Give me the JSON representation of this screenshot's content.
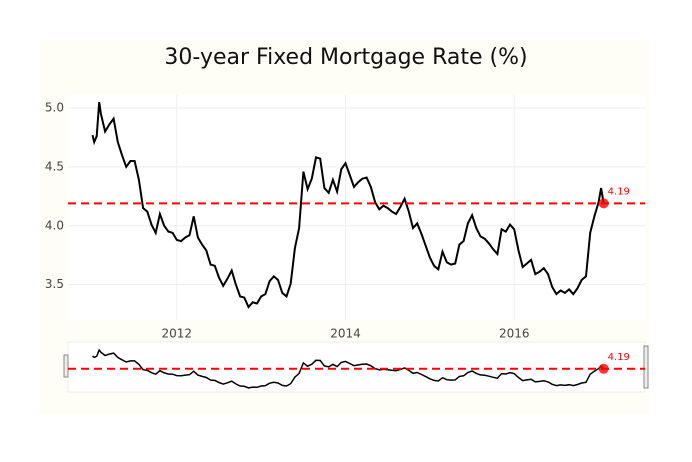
{
  "chart_data": {
    "type": "line",
    "title": "30-year Fixed Mortgage Rate (%)",
    "x": [
      2011.0,
      2011.02,
      2011.05,
      2011.08,
      2011.1,
      2011.15,
      2011.2,
      2011.25,
      2011.3,
      2011.35,
      2011.4,
      2011.45,
      2011.5,
      2011.55,
      2011.6,
      2011.65,
      2011.7,
      2011.75,
      2011.8,
      2011.85,
      2011.9,
      2011.95,
      2012.0,
      2012.05,
      2012.1,
      2012.15,
      2012.2,
      2012.25,
      2012.3,
      2012.35,
      2012.4,
      2012.45,
      2012.5,
      2012.55,
      2012.6,
      2012.65,
      2012.7,
      2012.75,
      2012.8,
      2012.85,
      2012.9,
      2012.95,
      2013.0,
      2013.05,
      2013.1,
      2013.15,
      2013.2,
      2013.25,
      2013.3,
      2013.35,
      2013.4,
      2013.45,
      2013.5,
      2013.55,
      2013.6,
      2013.65,
      2013.7,
      2013.75,
      2013.8,
      2013.85,
      2013.9,
      2013.95,
      2014.0,
      2014.05,
      2014.1,
      2014.15,
      2014.2,
      2014.25,
      2014.3,
      2014.35,
      2014.4,
      2014.45,
      2014.5,
      2014.55,
      2014.6,
      2014.65,
      2014.7,
      2014.75,
      2014.8,
      2014.85,
      2014.9,
      2014.95,
      2015.0,
      2015.05,
      2015.1,
      2015.15,
      2015.2,
      2015.25,
      2015.3,
      2015.35,
      2015.4,
      2015.45,
      2015.5,
      2015.55,
      2015.6,
      2015.65,
      2015.7,
      2015.75,
      2015.8,
      2015.85,
      2015.9,
      2015.95,
      2016.0,
      2016.05,
      2016.1,
      2016.15,
      2016.2,
      2016.25,
      2016.3,
      2016.35,
      2016.4,
      2016.45,
      2016.5,
      2016.55,
      2016.6,
      2016.65,
      2016.7,
      2016.75,
      2016.8,
      2016.85,
      2016.9,
      2016.95,
      2017.0,
      2017.03,
      2017.06
    ],
    "series": [
      {
        "color": "#000000",
        "values": [
          4.77,
          4.71,
          4.76,
          5.05,
          4.95,
          4.8,
          4.86,
          4.91,
          4.71,
          4.6,
          4.5,
          4.55,
          4.55,
          4.39,
          4.15,
          4.12,
          4.01,
          3.94,
          4.1,
          4.0,
          3.95,
          3.94,
          3.88,
          3.87,
          3.9,
          3.92,
          4.08,
          3.9,
          3.84,
          3.79,
          3.67,
          3.66,
          3.56,
          3.49,
          3.55,
          3.62,
          3.5,
          3.4,
          3.39,
          3.31,
          3.35,
          3.34,
          3.4,
          3.42,
          3.53,
          3.57,
          3.54,
          3.43,
          3.4,
          3.51,
          3.81,
          3.98,
          4.46,
          4.31,
          4.4,
          4.58,
          4.57,
          4.32,
          4.28,
          4.39,
          4.29,
          4.48,
          4.53,
          4.43,
          4.33,
          4.37,
          4.4,
          4.41,
          4.33,
          4.2,
          4.14,
          4.17,
          4.15,
          4.12,
          4.1,
          4.16,
          4.23,
          4.12,
          3.98,
          4.02,
          3.93,
          3.83,
          3.73,
          3.66,
          3.63,
          3.78,
          3.69,
          3.67,
          3.68,
          3.84,
          3.87,
          4.02,
          4.09,
          3.98,
          3.91,
          3.89,
          3.85,
          3.8,
          3.76,
          3.97,
          3.95,
          4.01,
          3.97,
          3.79,
          3.65,
          3.68,
          3.71,
          3.59,
          3.61,
          3.64,
          3.59,
          3.48,
          3.42,
          3.45,
          3.43,
          3.46,
          3.42,
          3.47,
          3.54,
          3.57,
          3.94,
          4.08,
          4.2,
          4.32,
          4.19
        ]
      }
    ],
    "hline": {
      "value": 4.19,
      "label": "4.19",
      "color": "#ff0000"
    },
    "xlim": [
      2010.71,
      2017.55
    ],
    "xticks": [
      2012,
      2014,
      2016
    ],
    "ylim": [
      3.2,
      5.11
    ],
    "yticks": [
      {
        "value": 5.0,
        "label": "5.0"
      },
      4.5,
      {
        "value": 4.0,
        "label": "4.0"
      },
      3.5
    ],
    "grid": true,
    "rangeslider": true
  }
}
